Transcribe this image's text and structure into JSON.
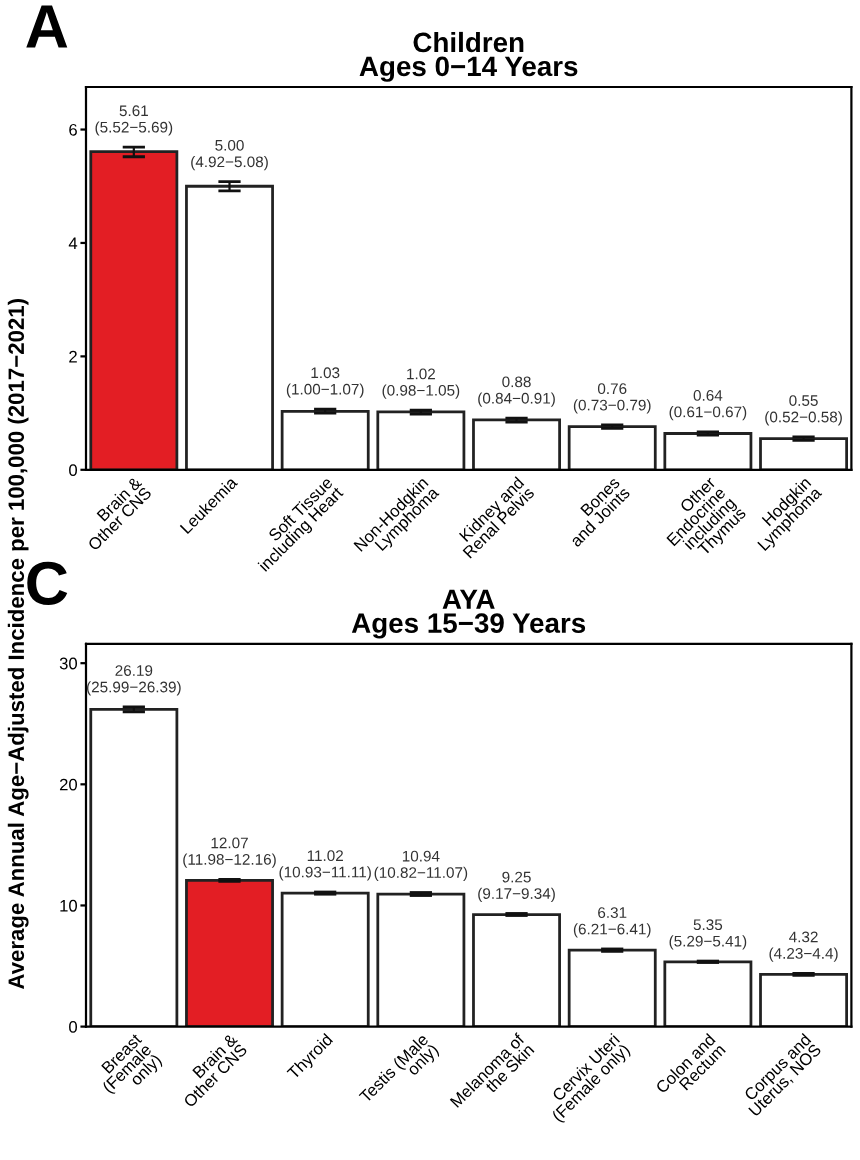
{
  "chart_data": [
    {
      "type": "bar",
      "title": "Children\nAges 0−14 Years",
      "annotations": [
        "A"
      ],
      "categories": [
        "Brain &\nOther CNS",
        "Leukemia",
        "Soft Tissue\nincluding Heart",
        "Non-Hodgkin\nLymphoma",
        "Kidney and\nRenal Pelvis",
        "Bones\nand Joints",
        "Other\nEndocrine\nincluding\nThymus",
        "Hodgkin\nLymphoma"
      ],
      "values": [
        5.61,
        5.0,
        1.03,
        1.02,
        0.88,
        0.76,
        0.64,
        0.55
      ],
      "colors": [
        "#e31e24",
        "#ffffff",
        "#ffffff",
        "#ffffff",
        "#ffffff",
        "#ffffff",
        "#ffffff",
        "#ffffff"
      ],
      "errors": [
        [
          5.52,
          5.69
        ],
        [
          4.92,
          5.08
        ],
        [
          1.0,
          1.07
        ],
        [
          0.98,
          1.05
        ],
        [
          0.84,
          0.91
        ],
        [
          0.73,
          0.79
        ],
        [
          0.61,
          0.67
        ],
        [
          0.52,
          0.58
        ]
      ],
      "value_labels": [
        "5.61\n(5.52−5.69)",
        "5.00\n(4.92−5.08)",
        "1.03\n(1.00−1.07)",
        "1.02\n(0.98−1.05)",
        "0.88\n(0.84−0.91)",
        "0.76\n(0.73−0.79)",
        "0.64\n(0.61−0.67)",
        "0.55\n(0.52−0.58)"
      ],
      "ylim": [
        0,
        6.75
      ],
      "yticks": [
        0,
        2,
        4,
        6
      ],
      "grid": false,
      "legend": false
    },
    {
      "type": "bar",
      "title": "AYA\nAges 15−39 Years",
      "annotations": [
        "C"
      ],
      "ylabel": "Average Annual Age−Adjusted Incidence per 100,000 (2017−2021)",
      "categories": [
        "Breast\n(Female\nonly)",
        "Brain &\nOther CNS",
        "Thyroid",
        "Testis (Male\nonly)",
        "Melanoma of\nthe Skin",
        "Cervix Uteri\n(Female only)",
        "Colon and\nRectum",
        "Corpus and\nUterus, NOS"
      ],
      "values": [
        26.19,
        12.07,
        11.02,
        10.94,
        9.25,
        6.31,
        5.35,
        4.32
      ],
      "colors": [
        "#ffffff",
        "#e31e24",
        "#ffffff",
        "#ffffff",
        "#ffffff",
        "#ffffff",
        "#ffffff",
        "#ffffff"
      ],
      "errors": [
        [
          25.99,
          26.39
        ],
        [
          11.98,
          12.16
        ],
        [
          10.93,
          11.11
        ],
        [
          10.82,
          11.07
        ],
        [
          9.17,
          9.34
        ],
        [
          6.21,
          6.41
        ],
        [
          5.29,
          5.41
        ],
        [
          4.23,
          4.4
        ]
      ],
      "value_labels": [
        "26.19\n(25.99−26.39)",
        "12.07\n(11.98−12.16)",
        "11.02\n(10.93−11.11)",
        "10.94\n(10.82−11.07)",
        "9.25\n(9.17−9.34)",
        "6.31\n(6.21−6.41)",
        "5.35\n(5.29−5.41)",
        "4.32\n(4.23−4.4)"
      ],
      "ylim": [
        0,
        31.6
      ],
      "yticks": [
        0,
        10,
        20,
        30
      ],
      "grid": false,
      "legend": false
    }
  ]
}
